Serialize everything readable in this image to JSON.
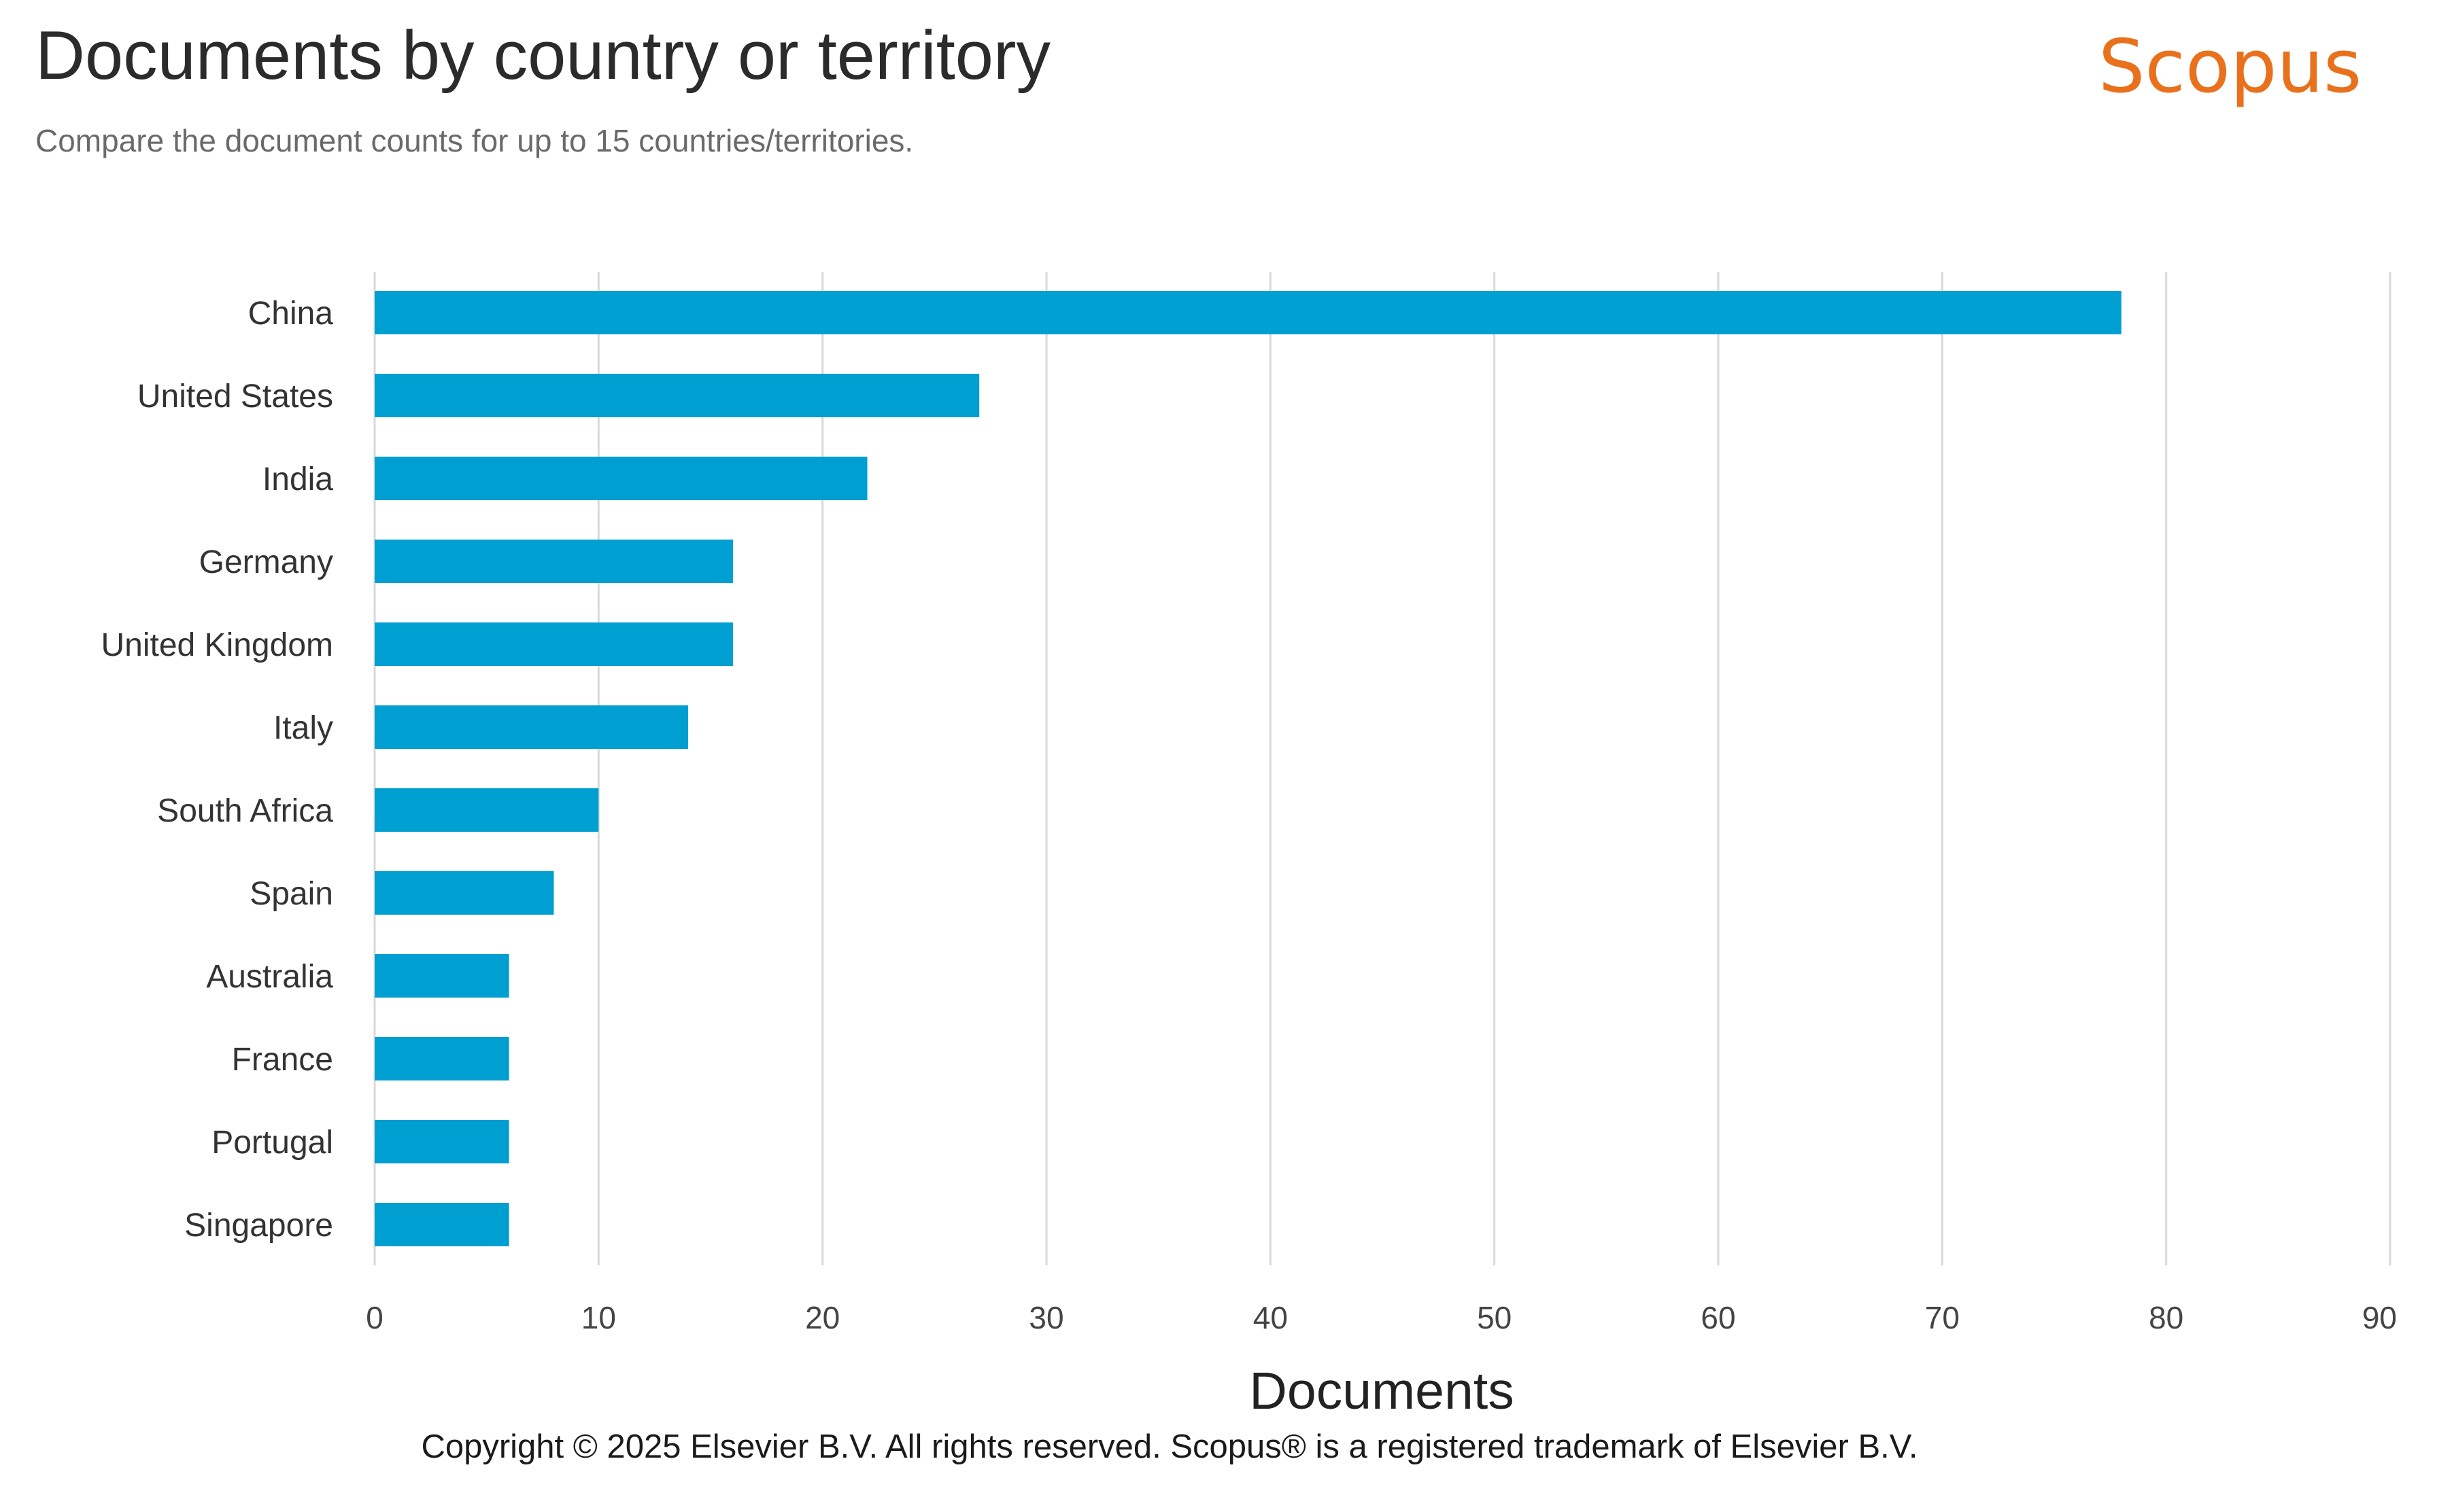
{
  "header": {
    "title": "Documents by country or territory",
    "subtitle": "Compare the document counts for up to 15 countries/territories.",
    "brand": "Scopus"
  },
  "footer": {
    "copyright": "Copyright © 2025 Elsevier B.V. All rights reserved. Scopus® is a registered trademark of Elsevier B.V."
  },
  "colors": {
    "bar": "#009fd1",
    "grid": "#d9d9d9",
    "brand": "#e9711c"
  },
  "chart_data": {
    "type": "bar",
    "orientation": "horizontal",
    "title": "Documents by country or territory",
    "subtitle": "Compare the document counts for up to 15 countries/territories.",
    "xlabel": "Documents",
    "ylabel": "",
    "categories": [
      "China",
      "United States",
      "India",
      "Germany",
      "United Kingdom",
      "Italy",
      "South Africa",
      "Spain",
      "Australia",
      "France",
      "Portugal",
      "Singapore"
    ],
    "values": [
      78,
      27,
      22,
      16,
      16,
      14,
      10,
      8,
      6,
      6,
      6,
      6
    ],
    "xlim": [
      0,
      90
    ],
    "xticks": [
      0,
      10,
      20,
      30,
      40,
      50,
      60,
      70,
      80,
      90
    ],
    "grid": "vertical",
    "legend": "none"
  }
}
